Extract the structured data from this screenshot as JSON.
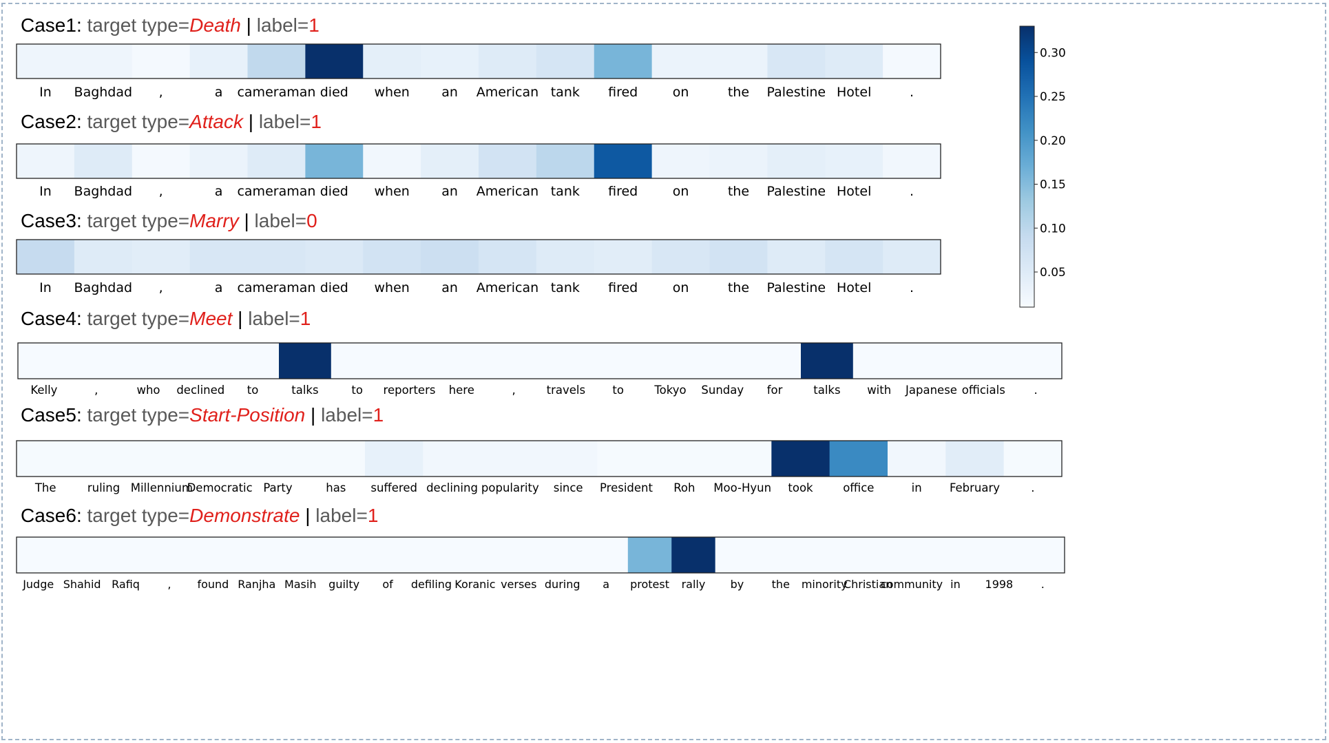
{
  "chart_data": [
    {
      "type": "heatmap",
      "case": "Case1",
      "target_type_label": "target type=",
      "target_type": "Death",
      "label_text": "label=",
      "label_value": "1",
      "tokens": [
        "In",
        "Baghdad",
        ",",
        "a",
        "cameraman",
        "died",
        "when",
        "an",
        "American",
        "tank",
        "fired",
        "on",
        "the",
        "Palestine",
        "Hotel",
        "."
      ],
      "values": [
        0.025,
        0.024,
        0.015,
        0.035,
        0.095,
        0.33,
        0.04,
        0.035,
        0.05,
        0.065,
        0.16,
        0.03,
        0.03,
        0.06,
        0.05,
        0.015
      ]
    },
    {
      "type": "heatmap",
      "case": "Case2",
      "target_type_label": "target type=",
      "target_type": "Attack",
      "label_text": "label=",
      "label_value": "1",
      "tokens": [
        "In",
        "Baghdad",
        ",",
        "a",
        "cameraman",
        "died",
        "when",
        "an",
        "American",
        "tank",
        "fired",
        "on",
        "the",
        "Palestine",
        "Hotel",
        "."
      ],
      "values": [
        0.025,
        0.05,
        0.015,
        0.03,
        0.05,
        0.16,
        0.02,
        0.04,
        0.07,
        0.1,
        0.28,
        0.025,
        0.03,
        0.04,
        0.035,
        0.02
      ]
    },
    {
      "type": "heatmap",
      "case": "Case3",
      "target_type_label": "target type=",
      "target_type": "Marry",
      "label_text": "label=",
      "label_value": "0",
      "tokens": [
        "In",
        "Baghdad",
        ",",
        "a",
        "cameraman",
        "died",
        "when",
        "an",
        "American",
        "tank",
        "fired",
        "on",
        "the",
        "Palestine",
        "Hotel",
        "."
      ],
      "values": [
        0.09,
        0.05,
        0.045,
        0.06,
        0.06,
        0.055,
        0.07,
        0.08,
        0.065,
        0.05,
        0.045,
        0.06,
        0.07,
        0.05,
        0.065,
        0.05
      ]
    },
    {
      "type": "heatmap",
      "case": "Case4",
      "target_type_label": "target type=",
      "target_type": "Meet",
      "label_text": "label=",
      "label_value": "1",
      "tokens": [
        "Kelly",
        ",",
        "who",
        "declined",
        "to",
        "talks",
        "to",
        "reporters",
        "here",
        ",",
        "travels",
        "to",
        "Tokyo",
        "Sunday",
        "for",
        "talks",
        "with",
        "Japanese",
        "officials",
        "."
      ],
      "values": [
        0.012,
        0.012,
        0.012,
        0.012,
        0.012,
        0.33,
        0.012,
        0.012,
        0.012,
        0.012,
        0.012,
        0.012,
        0.012,
        0.012,
        0.012,
        0.33,
        0.012,
        0.012,
        0.012,
        0.012
      ]
    },
    {
      "type": "heatmap",
      "case": "Case5",
      "target_type_label": "target type=",
      "target_type": "Start-Position",
      "label_text": "label=",
      "label_value": "1",
      "tokens": [
        "The",
        "ruling",
        "Millennium",
        "Democratic",
        "Party",
        "has",
        "suffered",
        "declining",
        "popularity",
        "since",
        "President",
        "Roh",
        "Moo-Hyun",
        "took",
        "office",
        "in",
        "February",
        "."
      ],
      "values": [
        0.013,
        0.013,
        0.013,
        0.013,
        0.013,
        0.013,
        0.035,
        0.02,
        0.02,
        0.02,
        0.013,
        0.013,
        0.013,
        0.33,
        0.22,
        0.02,
        0.045,
        0.013
      ]
    },
    {
      "type": "heatmap",
      "case": "Case6",
      "target_type_label": "target type=",
      "target_type": "Demonstrate",
      "label_text": "label=",
      "label_value": "1",
      "tokens": [
        "Judge",
        "Shahid",
        "Rafiq",
        ",",
        "found",
        "Ranjha",
        "Masih",
        "guilty",
        "of",
        "defiling",
        "Koranic",
        "verses",
        "during",
        "a",
        "protest",
        "rally",
        "by",
        "the",
        "minority",
        "Christian",
        "community",
        "in",
        "1998",
        "."
      ],
      "values": [
        0.012,
        0.012,
        0.012,
        0.012,
        0.012,
        0.012,
        0.012,
        0.012,
        0.012,
        0.012,
        0.012,
        0.012,
        0.012,
        0.012,
        0.16,
        0.33,
        0.012,
        0.012,
        0.012,
        0.012,
        0.012,
        0.012,
        0.012,
        0.012
      ]
    }
  ],
  "colorbar": {
    "ticks": [
      "0.05",
      "0.10",
      "0.15",
      "0.20",
      "0.25",
      "0.30"
    ],
    "range": [
      0.01,
      0.33
    ],
    "colormap": "Blues"
  },
  "colors": {
    "label_red": "#e0201b",
    "frame_border": "#9fb3c8"
  }
}
